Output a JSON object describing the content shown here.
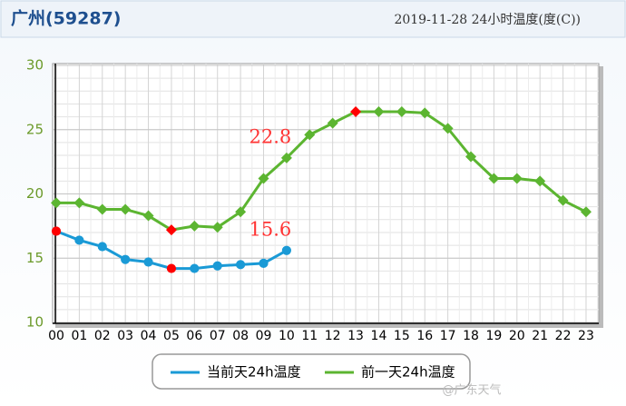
{
  "header": {
    "title": "广州(59287)",
    "subtitle": "2019-11-28  24小时温度(度(C))"
  },
  "watermark": "@广东天气",
  "chart_data": {
    "type": "line",
    "categories": [
      "00",
      "01",
      "02",
      "03",
      "04",
      "05",
      "06",
      "07",
      "08",
      "09",
      "10",
      "11",
      "12",
      "13",
      "14",
      "15",
      "16",
      "17",
      "18",
      "19",
      "20",
      "21",
      "22",
      "23"
    ],
    "series": [
      {
        "name": "当前天24h温度",
        "color": "#1a9ad6",
        "marker": "circle",
        "values": [
          17.1,
          16.4,
          15.9,
          14.9,
          14.7,
          14.2,
          14.2,
          14.4,
          14.5,
          14.6,
          15.6,
          null,
          null,
          null,
          null,
          null,
          null,
          null,
          null,
          null,
          null,
          null,
          null,
          null
        ]
      },
      {
        "name": "前一天24h温度",
        "color": "#5cb531",
        "marker": "diamond",
        "values": [
          19.3,
          19.3,
          18.8,
          18.8,
          18.3,
          17.2,
          17.5,
          17.4,
          18.6,
          21.2,
          22.8,
          24.6,
          25.5,
          26.4,
          26.4,
          26.4,
          26.3,
          25.1,
          22.9,
          21.2,
          21.2,
          21.0,
          19.5,
          18.6
        ]
      }
    ],
    "highlight_color": "#ff0000",
    "annotations": [
      {
        "text": "22.8",
        "x": 10,
        "y": 22.8,
        "color": "#ff3333"
      },
      {
        "text": "15.6",
        "x": 10,
        "y": 15.6,
        "color": "#ff3333"
      }
    ],
    "ylim": [
      10,
      30
    ],
    "yticks": [
      10,
      15,
      20,
      25,
      30
    ],
    "grid": true,
    "legend": "bottom"
  }
}
